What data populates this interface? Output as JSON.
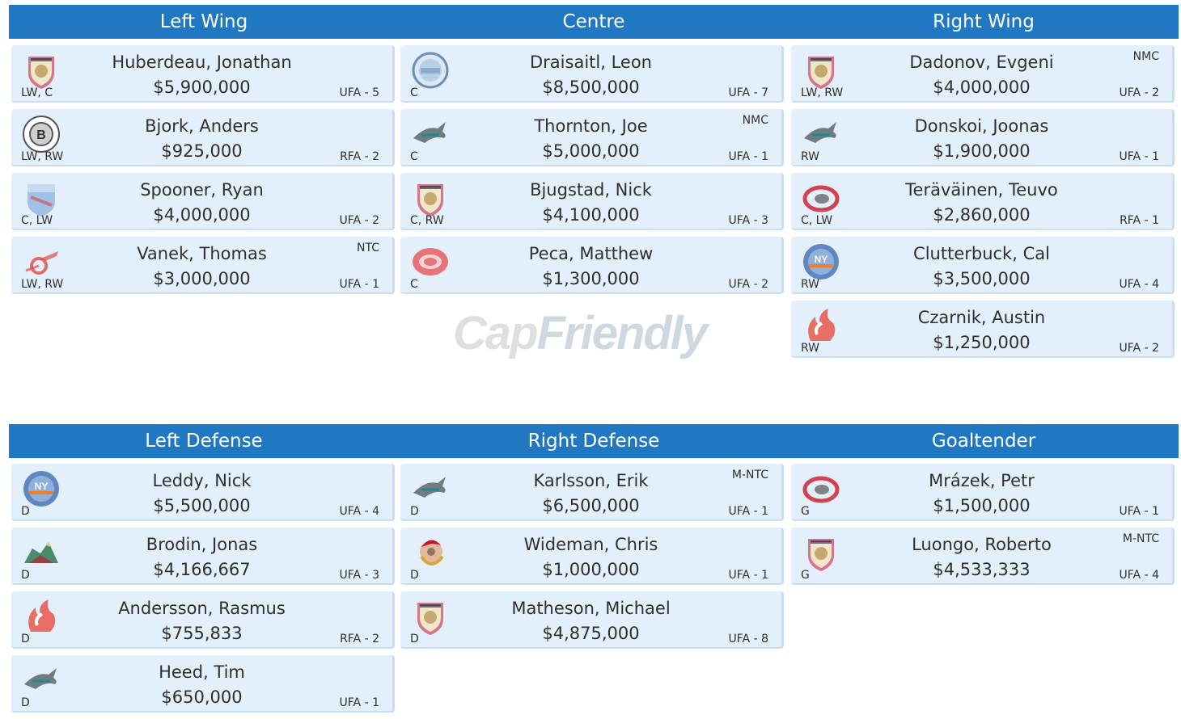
{
  "top_headers": [
    "Left Wing",
    "Centre",
    "Right Wing"
  ],
  "bottom_headers": [
    "Left Defense",
    "Right Defense",
    "Goaltender"
  ],
  "watermark": {
    "part1": "Cap",
    "part2": "Friendly"
  },
  "left_wing": [
    {
      "name": "Huberdeau, Jonathan",
      "cap": "$5,900,000",
      "pos": "LW, C",
      "exp": "UFA - 5",
      "clause": "",
      "logo": "panthers-logo"
    },
    {
      "name": "Bjork, Anders",
      "cap": "$925,000",
      "pos": "LW, RW",
      "exp": "RFA - 2",
      "clause": "",
      "logo": "bruins-logo"
    },
    {
      "name": "Spooner, Ryan",
      "cap": "$4,000,000",
      "pos": "C, LW",
      "exp": "UFA - 2",
      "clause": "",
      "logo": "rangers-logo"
    },
    {
      "name": "Vanek, Thomas",
      "cap": "$3,000,000",
      "pos": "LW, RW",
      "exp": "UFA - 1",
      "clause": "NTC",
      "logo": "red-wings-logo"
    }
  ],
  "centre": [
    {
      "name": "Draisaitl, Leon",
      "cap": "$8,500,000",
      "pos": "C",
      "exp": "UFA - 7",
      "clause": "",
      "logo": "oilers-logo"
    },
    {
      "name": "Thornton, Joe",
      "cap": "$5,000,000",
      "pos": "C",
      "exp": "UFA - 1",
      "clause": "NMC",
      "logo": "sharks-logo"
    },
    {
      "name": "Bjugstad, Nick",
      "cap": "$4,100,000",
      "pos": "C, RW",
      "exp": "UFA - 3",
      "clause": "",
      "logo": "panthers-logo"
    },
    {
      "name": "Peca, Matthew",
      "cap": "$1,300,000",
      "pos": "C",
      "exp": "UFA - 2",
      "clause": "",
      "logo": "canadiens-logo"
    }
  ],
  "right_wing": [
    {
      "name": "Dadonov, Evgeni",
      "cap": "$4,000,000",
      "pos": "LW, RW",
      "exp": "UFA - 2",
      "clause": "NMC",
      "logo": "panthers-logo"
    },
    {
      "name": "Donskoi, Joonas",
      "cap": "$1,900,000",
      "pos": "RW",
      "exp": "UFA - 1",
      "clause": "",
      "logo": "sharks-logo"
    },
    {
      "name": "Teräväinen, Teuvo",
      "cap": "$2,860,000",
      "pos": "C, LW",
      "exp": "RFA - 1",
      "clause": "",
      "logo": "hurricanes-logo"
    },
    {
      "name": "Clutterbuck, Cal",
      "cap": "$3,500,000",
      "pos": "RW",
      "exp": "UFA - 4",
      "clause": "",
      "logo": "islanders-logo"
    },
    {
      "name": "Czarnik, Austin",
      "cap": "$1,250,000",
      "pos": "RW",
      "exp": "UFA - 2",
      "clause": "",
      "logo": "flames-logo"
    }
  ],
  "left_defense": [
    {
      "name": "Leddy, Nick",
      "cap": "$5,500,000",
      "pos": "D",
      "exp": "UFA - 4",
      "clause": "",
      "logo": "islanders-logo"
    },
    {
      "name": "Brodin, Jonas",
      "cap": "$4,166,667",
      "pos": "D",
      "exp": "UFA - 3",
      "clause": "",
      "logo": "wild-logo"
    },
    {
      "name": "Andersson, Rasmus",
      "cap": "$755,833",
      "pos": "D",
      "exp": "RFA - 2",
      "clause": "",
      "logo": "flames-logo"
    },
    {
      "name": "Heed, Tim",
      "cap": "$650,000",
      "pos": "D",
      "exp": "UFA - 1",
      "clause": "",
      "logo": "sharks-logo"
    }
  ],
  "right_defense": [
    {
      "name": "Karlsson, Erik",
      "cap": "$6,500,000",
      "pos": "D",
      "exp": "UFA - 1",
      "clause": "M-NTC",
      "logo": "sharks-logo"
    },
    {
      "name": "Wideman, Chris",
      "cap": "$1,000,000",
      "pos": "D",
      "exp": "UFA - 1",
      "clause": "",
      "logo": "senators-logo"
    },
    {
      "name": "Matheson, Michael",
      "cap": "$4,875,000",
      "pos": "D",
      "exp": "UFA - 8",
      "clause": "",
      "logo": "panthers-logo"
    }
  ],
  "goaltender": [
    {
      "name": "Mrázek, Petr",
      "cap": "$1,500,000",
      "pos": "G",
      "exp": "UFA - 1",
      "clause": "",
      "logo": "hurricanes-logo"
    },
    {
      "name": "Luongo, Roberto",
      "cap": "$4,533,333",
      "pos": "G",
      "exp": "UFA - 4",
      "clause": "M-NTC",
      "logo": "panthers-logo"
    }
  ]
}
